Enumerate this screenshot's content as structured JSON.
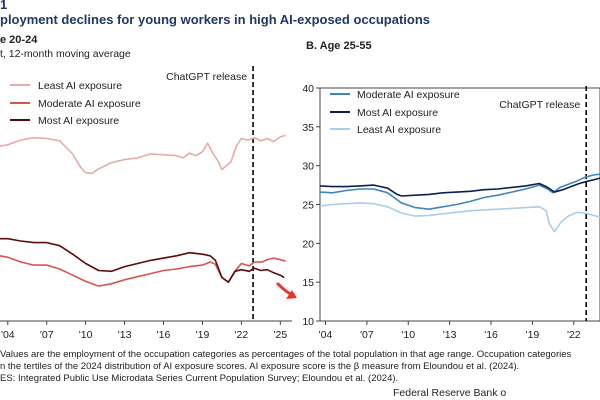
{
  "figure_label": "1",
  "figure_title": "ployment declines for young workers in high AI-exposed occupations",
  "footer": {
    "note_line1": "Values are the employment of the occupation categories as percentages of the total population in that age range. Occupation categories",
    "note_line2": "n the tertiles of the 2024 distribution of AI exposure scores. AI exposure score is the β measure from Eloundou et al. (2024).",
    "note_line3": "ES: Integrated Public Use Microdata Series Current Population Survey; Eloundou et al. (2024).",
    "credit": "Federal Reserve Bank o"
  },
  "colors": {
    "least": "#e8a9a9",
    "moderate": "#d9534f",
    "most": "#5c0a0a",
    "least_b": "#a9cdea",
    "moderate_b": "#3e86bf",
    "most_b": "#0d1f4f",
    "arrow": "#ea3323"
  },
  "chart_data": [
    {
      "type": "line",
      "panel": "A",
      "title": "e 20-24",
      "subtitle": "t, 12-month moving average",
      "annotation": "ChatGPT release",
      "annotation_x": 2022.9,
      "xlim": [
        2003.4,
        2025.9
      ],
      "ylim": [
        10,
        40
      ],
      "x_ticks": [
        {
          "x": 2004,
          "label": "'04"
        },
        {
          "x": 2007,
          "label": "'07"
        },
        {
          "x": 2010,
          "label": "'10"
        },
        {
          "x": 2013,
          "label": "'13"
        },
        {
          "x": 2016,
          "label": "'16"
        },
        {
          "x": 2019,
          "label": "'19"
        },
        {
          "x": 2022,
          "label": "'22"
        },
        {
          "x": 2025,
          "label": "'25"
        }
      ],
      "legend": [
        "Least AI exposure",
        "Moderate AI exposure",
        "Most AI exposure"
      ],
      "series": [
        {
          "name": "Least AI exposure",
          "color_key": "least",
          "points": [
            [
              2003.4,
              32.5
            ],
            [
              2004,
              32.7
            ],
            [
              2005,
              33.3
            ],
            [
              2006,
              33.6
            ],
            [
              2007,
              33.5
            ],
            [
              2008,
              33.2
            ],
            [
              2009,
              31.5
            ],
            [
              2009.6,
              29.8
            ],
            [
              2010,
              29.1
            ],
            [
              2010.5,
              29.0
            ],
            [
              2011,
              29.6
            ],
            [
              2012,
              30.4
            ],
            [
              2013,
              30.8
            ],
            [
              2014,
              31.0
            ],
            [
              2015,
              31.5
            ],
            [
              2016,
              31.4
            ],
            [
              2017,
              31.3
            ],
            [
              2017.5,
              31.0
            ],
            [
              2018,
              31.6
            ],
            [
              2018.5,
              31.3
            ],
            [
              2019,
              31.8
            ],
            [
              2019.4,
              32.9
            ],
            [
              2019.8,
              31.6
            ],
            [
              2020.2,
              30.6
            ],
            [
              2020.5,
              29.5
            ],
            [
              2021.2,
              30.5
            ],
            [
              2021.6,
              32.5
            ],
            [
              2022,
              33.5
            ],
            [
              2022.5,
              33.3
            ],
            [
              2023,
              33.6
            ],
            [
              2023.5,
              33.2
            ],
            [
              2024,
              33.5
            ],
            [
              2024.5,
              33.1
            ],
            [
              2025,
              33.7
            ],
            [
              2025.4,
              33.9
            ]
          ]
        },
        {
          "name": "Moderate AI exposure",
          "color_key": "moderate",
          "points": [
            [
              2003.4,
              18.4
            ],
            [
              2004,
              18.2
            ],
            [
              2005,
              17.6
            ],
            [
              2006,
              17.2
            ],
            [
              2007,
              17.2
            ],
            [
              2008,
              16.7
            ],
            [
              2009,
              15.9
            ],
            [
              2010,
              15.1
            ],
            [
              2011,
              14.5
            ],
            [
              2012,
              14.8
            ],
            [
              2013,
              15.3
            ],
            [
              2014,
              15.7
            ],
            [
              2015,
              16.1
            ],
            [
              2016,
              16.5
            ],
            [
              2017,
              16.7
            ],
            [
              2018,
              17.0
            ],
            [
              2019,
              17.2
            ],
            [
              2019.6,
              17.6
            ],
            [
              2020,
              17.3
            ],
            [
              2020.5,
              15.6
            ],
            [
              2021,
              15.0
            ],
            [
              2021.6,
              16.6
            ],
            [
              2022,
              17.4
            ],
            [
              2022.6,
              17.1
            ],
            [
              2023,
              17.6
            ],
            [
              2023.6,
              17.6
            ],
            [
              2024,
              17.9
            ],
            [
              2024.5,
              18.1
            ],
            [
              2025,
              17.9
            ],
            [
              2025.4,
              17.7
            ]
          ]
        },
        {
          "name": "Most AI exposure",
          "color_key": "most",
          "points": [
            [
              2003.4,
              20.6
            ],
            [
              2004,
              20.6
            ],
            [
              2005,
              20.3
            ],
            [
              2006,
              20.1
            ],
            [
              2007,
              20.1
            ],
            [
              2008,
              19.7
            ],
            [
              2009,
              18.6
            ],
            [
              2010,
              17.4
            ],
            [
              2011,
              16.5
            ],
            [
              2012,
              16.4
            ],
            [
              2013,
              17.0
            ],
            [
              2014,
              17.4
            ],
            [
              2015,
              17.8
            ],
            [
              2016,
              18.1
            ],
            [
              2017,
              18.4
            ],
            [
              2018,
              18.8
            ],
            [
              2019,
              18.6
            ],
            [
              2019.6,
              18.4
            ],
            [
              2020,
              17.8
            ],
            [
              2020.5,
              15.6
            ],
            [
              2021,
              15.0
            ],
            [
              2021.5,
              16.4
            ],
            [
              2022,
              16.6
            ],
            [
              2022.6,
              16.4
            ],
            [
              2023,
              16.8
            ],
            [
              2023.5,
              16.5
            ],
            [
              2024,
              16.6
            ],
            [
              2024.5,
              16.2
            ],
            [
              2025,
              15.9
            ],
            [
              2025.3,
              15.6
            ]
          ]
        }
      ]
    },
    {
      "type": "line",
      "panel": "B",
      "title": "B. Age 25-55",
      "annotation": "ChatGPT release",
      "annotation_x": 2022.9,
      "xlim": [
        2003.6,
        2023.9
      ],
      "ylim": [
        10,
        40
      ],
      "y_ticks": [
        10,
        15,
        20,
        25,
        30,
        35,
        40
      ],
      "x_ticks": [
        {
          "x": 2004,
          "label": "'04"
        },
        {
          "x": 2007,
          "label": "'07"
        },
        {
          "x": 2010,
          "label": "'10"
        },
        {
          "x": 2013,
          "label": "'13"
        },
        {
          "x": 2016,
          "label": "'16"
        },
        {
          "x": 2019,
          "label": "'19"
        },
        {
          "x": 2022,
          "label": "'22"
        }
      ],
      "legend": [
        "Moderate AI exposure",
        "Most AI exposure",
        "Least AI exposure"
      ],
      "series": [
        {
          "name": "Moderate AI exposure",
          "color_key": "moderate_b",
          "points": [
            [
              2003.6,
              26.6
            ],
            [
              2004.5,
              26.5
            ],
            [
              2005.5,
              26.8
            ],
            [
              2006.5,
              27.0
            ],
            [
              2007.5,
              27.0
            ],
            [
              2008.5,
              26.5
            ],
            [
              2009.5,
              25.2
            ],
            [
              2010.5,
              24.6
            ],
            [
              2011.5,
              24.4
            ],
            [
              2012.5,
              24.7
            ],
            [
              2013.5,
              25.0
            ],
            [
              2014.5,
              25.4
            ],
            [
              2015.5,
              25.9
            ],
            [
              2016.5,
              26.2
            ],
            [
              2017.5,
              26.6
            ],
            [
              2018.5,
              27.0
            ],
            [
              2019.5,
              27.5
            ],
            [
              2020.1,
              27.0
            ],
            [
              2020.5,
              26.5
            ],
            [
              2021,
              27.2
            ],
            [
              2021.6,
              27.6
            ],
            [
              2022.2,
              28.0
            ],
            [
              2022.8,
              28.5
            ],
            [
              2023.4,
              28.8
            ],
            [
              2023.9,
              28.9
            ]
          ]
        },
        {
          "name": "Most AI exposure",
          "color_key": "most_b",
          "points": [
            [
              2003.6,
              27.4
            ],
            [
              2004.5,
              27.3
            ],
            [
              2005.5,
              27.3
            ],
            [
              2006.5,
              27.4
            ],
            [
              2007.5,
              27.5
            ],
            [
              2008.5,
              27.1
            ],
            [
              2009.2,
              26.3
            ],
            [
              2009.5,
              26.1
            ],
            [
              2010.5,
              26.2
            ],
            [
              2011.5,
              26.3
            ],
            [
              2012.5,
              26.5
            ],
            [
              2013.5,
              26.6
            ],
            [
              2014.5,
              26.7
            ],
            [
              2015.5,
              26.9
            ],
            [
              2016.5,
              27.0
            ],
            [
              2017.5,
              27.2
            ],
            [
              2018.5,
              27.4
            ],
            [
              2019.5,
              27.7
            ],
            [
              2020,
              27.3
            ],
            [
              2020.6,
              26.6
            ],
            [
              2021.2,
              26.9
            ],
            [
              2021.8,
              27.3
            ],
            [
              2022.4,
              27.7
            ],
            [
              2023,
              28.0
            ],
            [
              2023.5,
              28.2
            ],
            [
              2023.9,
              28.4
            ]
          ]
        },
        {
          "name": "Least AI exposure",
          "color_key": "least_b",
          "points": [
            [
              2003.6,
              24.8
            ],
            [
              2004.5,
              25.0
            ],
            [
              2005.5,
              25.1
            ],
            [
              2006.5,
              25.2
            ],
            [
              2007.5,
              25.1
            ],
            [
              2008.5,
              24.7
            ],
            [
              2009.5,
              23.9
            ],
            [
              2010.5,
              23.5
            ],
            [
              2011.5,
              23.6
            ],
            [
              2012.5,
              23.8
            ],
            [
              2013.5,
              24.0
            ],
            [
              2014.5,
              24.2
            ],
            [
              2015.5,
              24.3
            ],
            [
              2016.5,
              24.4
            ],
            [
              2017.5,
              24.5
            ],
            [
              2018.5,
              24.6
            ],
            [
              2019.5,
              24.7
            ],
            [
              2020,
              24.2
            ],
            [
              2020.2,
              22.6
            ],
            [
              2020.6,
              21.5
            ],
            [
              2021.1,
              22.8
            ],
            [
              2021.6,
              23.5
            ],
            [
              2022.2,
              24.0
            ],
            [
              2022.8,
              23.9
            ],
            [
              2023.4,
              23.6
            ],
            [
              2023.9,
              23.4
            ]
          ]
        }
      ]
    }
  ]
}
